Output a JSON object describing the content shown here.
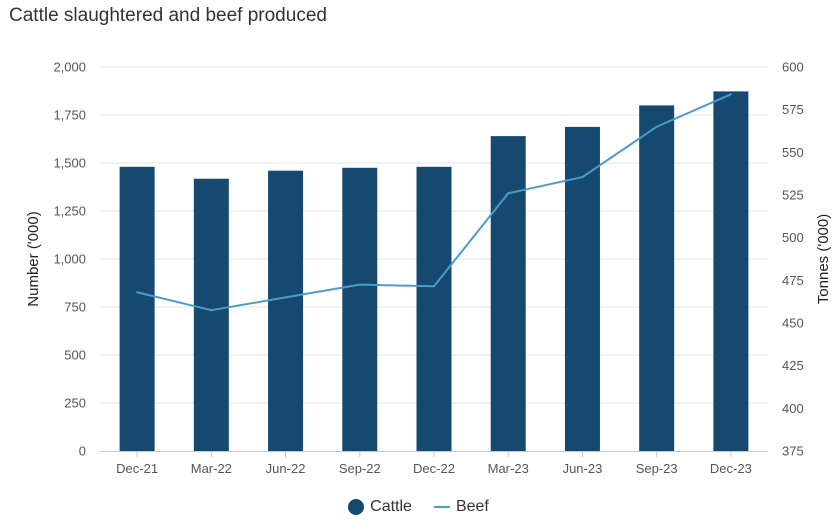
{
  "title": "Cattle slaughtered and beef produced",
  "chart_data": {
    "type": "bar",
    "title": "Cattle slaughtered and beef produced",
    "categories": [
      "Dec-21",
      "Mar-22",
      "Jun-22",
      "Sep-22",
      "Dec-22",
      "Mar-23",
      "Jun-23",
      "Sep-23",
      "Dec-23"
    ],
    "ylabel": "Number ('000)",
    "y2label": "Tonnes ('000)",
    "ylim": [
      0,
      2000
    ],
    "y2lim": [
      375,
      600
    ],
    "yticks": [
      0,
      250,
      500,
      750,
      1000,
      1250,
      1500,
      1750,
      2000
    ],
    "y2ticks": [
      375,
      400,
      425,
      450,
      475,
      500,
      525,
      550,
      575,
      600
    ],
    "ytick_labels": [
      "0",
      "250",
      "500",
      "750",
      "1,000",
      "1,250",
      "1,500",
      "1,750",
      "2,000"
    ],
    "y2tick_labels": [
      "375",
      "400",
      "425",
      "450",
      "475",
      "500",
      "525",
      "550",
      "575",
      "600"
    ],
    "grid": true,
    "legend_position": "bottom-center",
    "series": [
      {
        "name": "Cattle",
        "type": "bar",
        "axis": "left",
        "color": "#16496f",
        "values": [
          1480,
          1418,
          1460,
          1475,
          1480,
          1640,
          1688,
          1800,
          1873
        ]
      },
      {
        "name": "Beef",
        "type": "line",
        "axis": "right",
        "color": "#4a9ccb",
        "values": [
          468,
          457.5,
          465,
          472.5,
          471.5,
          526,
          535.5,
          565,
          584
        ]
      }
    ]
  }
}
